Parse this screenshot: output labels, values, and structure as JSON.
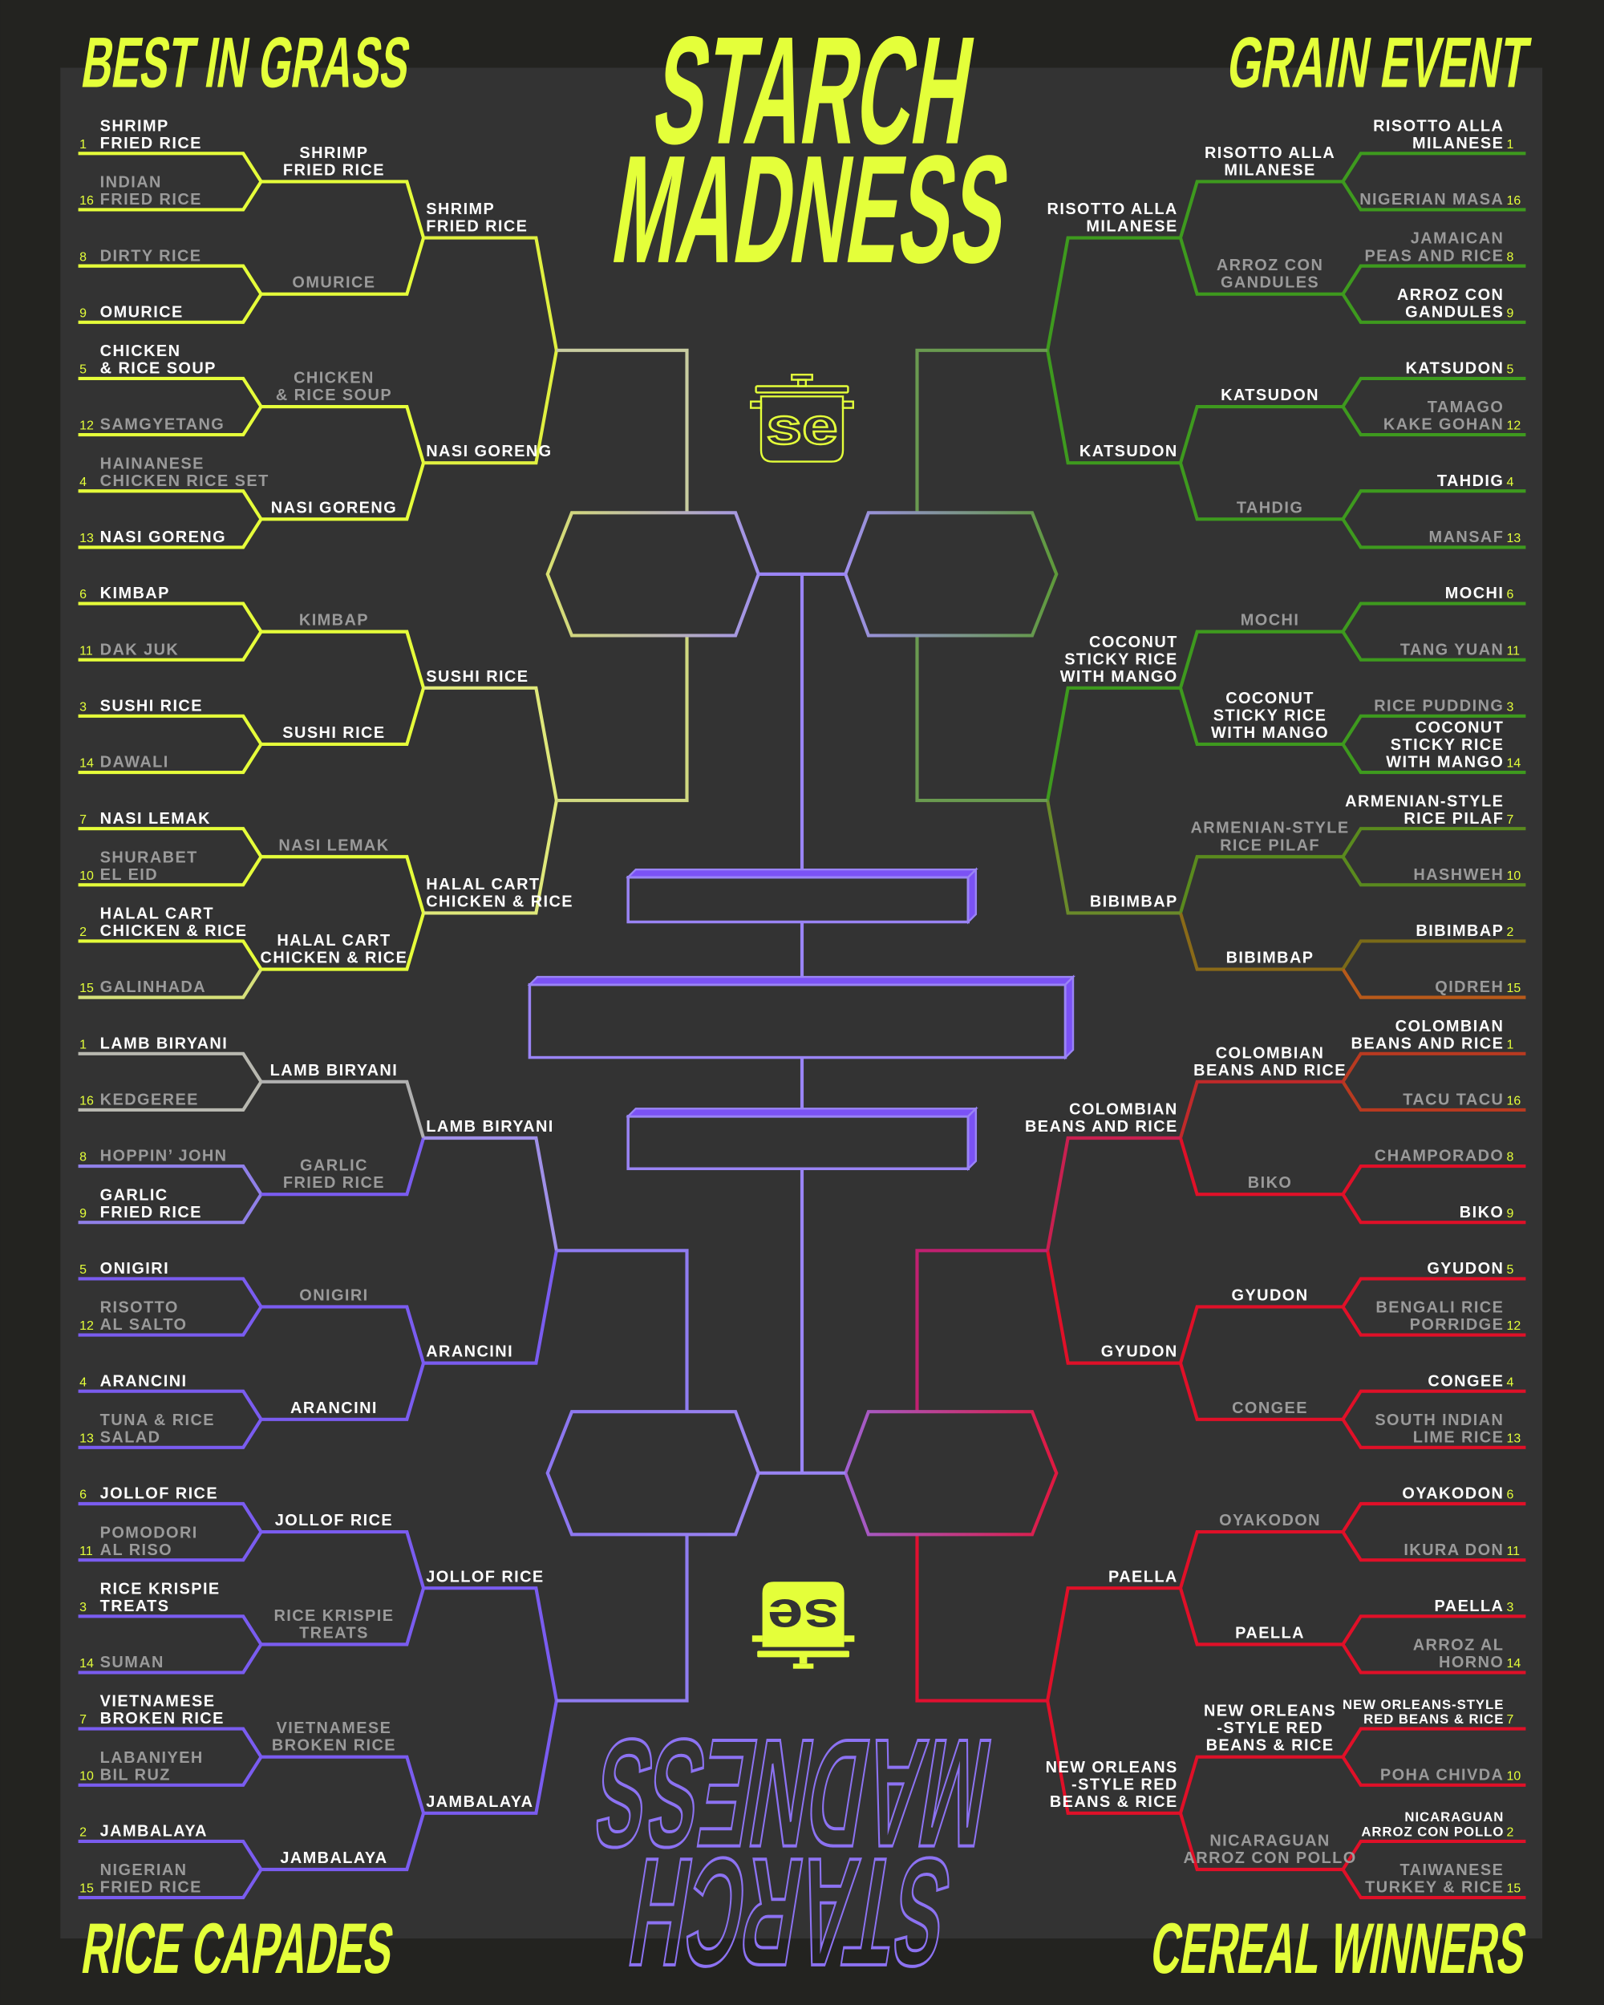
{
  "title": {
    "line1": "STARCH",
    "line2": "MADNESS"
  },
  "logo_text": "se",
  "colors": {
    "accent_yellow": "#e4ff3a",
    "panel": "#333333",
    "background": "#232320",
    "best_in_grass": "#e6ff3a",
    "rice_capades": "#7a5cf0",
    "grain_event": "#3e9a1e",
    "cereal_winners": "#e01028",
    "finals": "#9a84f5",
    "advanced_text": "#ffffff",
    "eliminated_text": "#9a9a9a"
  },
  "regions": [
    {
      "name": "BEST IN GRASS",
      "position": "top-left",
      "round1": [
        {
          "seed": 1,
          "name": [
            "SHRIMP",
            "FRIED RICE"
          ],
          "advanced": true
        },
        {
          "seed": 16,
          "name": [
            "INDIAN",
            "FRIED RICE"
          ],
          "advanced": false
        },
        {
          "seed": 8,
          "name": [
            "DIRTY RICE"
          ],
          "advanced": false
        },
        {
          "seed": 9,
          "name": [
            "OMURICE"
          ],
          "advanced": true
        },
        {
          "seed": 5,
          "name": [
            "CHICKEN",
            "& RICE SOUP"
          ],
          "advanced": true
        },
        {
          "seed": 12,
          "name": [
            "SAMGYETANG"
          ],
          "advanced": false
        },
        {
          "seed": 4,
          "name": [
            "HAINANESE",
            "CHICKEN RICE SET"
          ],
          "advanced": false
        },
        {
          "seed": 13,
          "name": [
            "NASI GORENG"
          ],
          "advanced": true
        },
        {
          "seed": 6,
          "name": [
            "KIMBAP"
          ],
          "advanced": true
        },
        {
          "seed": 11,
          "name": [
            "DAK JUK"
          ],
          "advanced": false
        },
        {
          "seed": 3,
          "name": [
            "SUSHI RICE"
          ],
          "advanced": true
        },
        {
          "seed": 14,
          "name": [
            "DAWALI"
          ],
          "advanced": false
        },
        {
          "seed": 7,
          "name": [
            "NASI LEMAK"
          ],
          "advanced": true
        },
        {
          "seed": 10,
          "name": [
            "SHURABET",
            "EL EID"
          ],
          "advanced": false
        },
        {
          "seed": 2,
          "name": [
            "HALAL CART",
            "CHICKEN & RICE"
          ],
          "advanced": true
        },
        {
          "seed": 15,
          "name": [
            "GALINHADA"
          ],
          "advanced": false
        }
      ],
      "round2": [
        {
          "name": [
            "SHRIMP",
            "FRIED RICE"
          ],
          "advanced": true
        },
        {
          "name": [
            "OMURICE"
          ],
          "advanced": false
        },
        {
          "name": [
            "CHICKEN",
            "& RICE SOUP"
          ],
          "advanced": false
        },
        {
          "name": [
            "NASI GORENG"
          ],
          "advanced": true
        },
        {
          "name": [
            "KIMBAP"
          ],
          "advanced": false
        },
        {
          "name": [
            "SUSHI RICE"
          ],
          "advanced": true
        },
        {
          "name": [
            "NASI LEMAK"
          ],
          "advanced": false
        },
        {
          "name": [
            "HALAL CART",
            "CHICKEN & RICE"
          ],
          "advanced": true
        }
      ],
      "round3": [
        {
          "name": [
            "SHRIMP",
            "FRIED RICE"
          ],
          "advanced": true
        },
        {
          "name": [
            "NASI GORENG"
          ],
          "advanced": true
        },
        {
          "name": [
            "SUSHI RICE"
          ],
          "advanced": true
        },
        {
          "name": [
            "HALAL CART",
            "CHICKEN & RICE"
          ],
          "advanced": true
        }
      ]
    },
    {
      "name": "RICE CAPADES",
      "position": "bottom-left",
      "round1": [
        {
          "seed": 1,
          "name": [
            "LAMB BIRYANI"
          ],
          "advanced": true
        },
        {
          "seed": 16,
          "name": [
            "KEDGEREE"
          ],
          "advanced": false
        },
        {
          "seed": 8,
          "name": [
            "HOPPIN’ JOHN"
          ],
          "advanced": false
        },
        {
          "seed": 9,
          "name": [
            "GARLIC",
            "FRIED RICE"
          ],
          "advanced": true
        },
        {
          "seed": 5,
          "name": [
            "ONIGIRI"
          ],
          "advanced": true
        },
        {
          "seed": 12,
          "name": [
            "RISOTTO",
            "AL SALTO"
          ],
          "advanced": false
        },
        {
          "seed": 4,
          "name": [
            "ARANCINI"
          ],
          "advanced": true
        },
        {
          "seed": 13,
          "name": [
            "TUNA & RICE",
            "SALAD"
          ],
          "advanced": false
        },
        {
          "seed": 6,
          "name": [
            "JOLLOF RICE"
          ],
          "advanced": true
        },
        {
          "seed": 11,
          "name": [
            "POMODORI",
            "AL RISO"
          ],
          "advanced": false
        },
        {
          "seed": 3,
          "name": [
            "RICE KRISPIE",
            "TREATS"
          ],
          "advanced": true
        },
        {
          "seed": 14,
          "name": [
            "SUMAN"
          ],
          "advanced": false
        },
        {
          "seed": 7,
          "name": [
            "VIETNAMESE",
            "BROKEN RICE"
          ],
          "advanced": true
        },
        {
          "seed": 10,
          "name": [
            "LABANIYEH",
            "BIL RUZ"
          ],
          "advanced": false
        },
        {
          "seed": 2,
          "name": [
            "JAMBALAYA"
          ],
          "advanced": true
        },
        {
          "seed": 15,
          "name": [
            "NIGERIAN",
            "FRIED RICE"
          ],
          "advanced": false
        }
      ],
      "round2": [
        {
          "name": [
            "LAMB BIRYANI"
          ],
          "advanced": true
        },
        {
          "name": [
            "GARLIC",
            "FRIED RICE"
          ],
          "advanced": false
        },
        {
          "name": [
            "ONIGIRI"
          ],
          "advanced": false
        },
        {
          "name": [
            "ARANCINI"
          ],
          "advanced": true
        },
        {
          "name": [
            "JOLLOF RICE"
          ],
          "advanced": true
        },
        {
          "name": [
            "RICE KRISPIE",
            "TREATS"
          ],
          "advanced": false
        },
        {
          "name": [
            "VIETNAMESE",
            "BROKEN RICE"
          ],
          "advanced": false
        },
        {
          "name": [
            "JAMBALAYA"
          ],
          "advanced": true
        }
      ],
      "round3": [
        {
          "name": [
            "LAMB BIRYANI"
          ],
          "advanced": true
        },
        {
          "name": [
            "ARANCINI"
          ],
          "advanced": true
        },
        {
          "name": [
            "JOLLOF RICE"
          ],
          "advanced": true
        },
        {
          "name": [
            "JAMBALAYA"
          ],
          "advanced": true
        }
      ]
    },
    {
      "name": "GRAIN EVENT",
      "position": "top-right",
      "round1": [
        {
          "seed": 1,
          "name": [
            "RISOTTO ALLA",
            "MILANESE"
          ],
          "advanced": true
        },
        {
          "seed": 16,
          "name": [
            "NIGERIAN MASA"
          ],
          "advanced": false
        },
        {
          "seed": 8,
          "name": [
            "JAMAICAN",
            "PEAS AND RICE"
          ],
          "advanced": false
        },
        {
          "seed": 9,
          "name": [
            "ARROZ CON",
            "GANDULES"
          ],
          "advanced": true
        },
        {
          "seed": 5,
          "name": [
            "KATSUDON"
          ],
          "advanced": true
        },
        {
          "seed": 12,
          "name": [
            "TAMAGO",
            "KAKE GOHAN"
          ],
          "advanced": false
        },
        {
          "seed": 4,
          "name": [
            "TAHDIG"
          ],
          "advanced": true
        },
        {
          "seed": 13,
          "name": [
            "MANSAF"
          ],
          "advanced": false
        },
        {
          "seed": 6,
          "name": [
            "MOCHI"
          ],
          "advanced": true
        },
        {
          "seed": 11,
          "name": [
            "TANG YUAN"
          ],
          "advanced": false
        },
        {
          "seed": 3,
          "name": [
            "RICE PUDDING"
          ],
          "advanced": false
        },
        {
          "seed": 14,
          "name": [
            "COCONUT",
            "STICKY RICE",
            "WITH MANGO"
          ],
          "advanced": true
        },
        {
          "seed": 7,
          "name": [
            "ARMENIAN-STYLE",
            "RICE PILAF"
          ],
          "advanced": true
        },
        {
          "seed": 10,
          "name": [
            "HASHWEH"
          ],
          "advanced": false
        },
        {
          "seed": 2,
          "name": [
            "BIBIMBAP"
          ],
          "advanced": true
        },
        {
          "seed": 15,
          "name": [
            "QIDREH"
          ],
          "advanced": false
        }
      ],
      "round2": [
        {
          "name": [
            "RISOTTO ALLA",
            "MILANESE"
          ],
          "advanced": true
        },
        {
          "name": [
            "ARROZ CON",
            "GANDULES"
          ],
          "advanced": false
        },
        {
          "name": [
            "KATSUDON"
          ],
          "advanced": true
        },
        {
          "name": [
            "TAHDIG"
          ],
          "advanced": false
        },
        {
          "name": [
            "MOCHI"
          ],
          "advanced": false
        },
        {
          "name": [
            "COCONUT",
            "STICKY RICE",
            "WITH MANGO"
          ],
          "advanced": true
        },
        {
          "name": [
            "ARMENIAN-STYLE",
            "RICE PILAF"
          ],
          "advanced": false
        },
        {
          "name": [
            "BIBIMBAP"
          ],
          "advanced": true
        }
      ],
      "round3": [
        {
          "name": [
            "RISOTTO ALLA",
            "MILANESE"
          ],
          "advanced": true
        },
        {
          "name": [
            "KATSUDON"
          ],
          "advanced": true
        },
        {
          "name": [
            "COCONUT",
            "STICKY RICE",
            "WITH MANGO"
          ],
          "advanced": true
        },
        {
          "name": [
            "BIBIMBAP"
          ],
          "advanced": true
        }
      ]
    },
    {
      "name": "CEREAL WINNERS",
      "position": "bottom-right",
      "round1": [
        {
          "seed": 1,
          "name": [
            "COLOMBIAN",
            "BEANS AND RICE"
          ],
          "advanced": true
        },
        {
          "seed": 16,
          "name": [
            "TACU TACU"
          ],
          "advanced": false
        },
        {
          "seed": 8,
          "name": [
            "CHAMPORADO"
          ],
          "advanced": false
        },
        {
          "seed": 9,
          "name": [
            "BIKO"
          ],
          "advanced": true
        },
        {
          "seed": 5,
          "name": [
            "GYUDON"
          ],
          "advanced": true
        },
        {
          "seed": 12,
          "name": [
            "BENGALI RICE",
            "PORRIDGE"
          ],
          "advanced": false
        },
        {
          "seed": 4,
          "name": [
            "CONGEE"
          ],
          "advanced": true
        },
        {
          "seed": 13,
          "name": [
            "SOUTH INDIAN",
            "LIME RICE"
          ],
          "advanced": false
        },
        {
          "seed": 6,
          "name": [
            "OYAKODON"
          ],
          "advanced": true
        },
        {
          "seed": 11,
          "name": [
            "IKURA DON"
          ],
          "advanced": false
        },
        {
          "seed": 3,
          "name": [
            "PAELLA"
          ],
          "advanced": true
        },
        {
          "seed": 14,
          "name": [
            "ARROZ AL",
            "HORNO"
          ],
          "advanced": false
        },
        {
          "seed": 7,
          "name": [
            "NEW ORLEANS-STYLE",
            "RED BEANS & RICE"
          ],
          "advanced": true
        },
        {
          "seed": 10,
          "name": [
            "POHA CHIVDA"
          ],
          "advanced": false
        },
        {
          "seed": 2,
          "name": [
            "NICARAGUAN",
            "ARROZ CON POLLO"
          ],
          "advanced": true
        },
        {
          "seed": 15,
          "name": [
            "TAIWANESE",
            "TURKEY & RICE"
          ],
          "advanced": false
        }
      ],
      "round2": [
        {
          "name": [
            "COLOMBIAN",
            "BEANS AND RICE"
          ],
          "advanced": true
        },
        {
          "name": [
            "BIKO"
          ],
          "advanced": false
        },
        {
          "name": [
            "GYUDON"
          ],
          "advanced": true
        },
        {
          "name": [
            "CONGEE"
          ],
          "advanced": false
        },
        {
          "name": [
            "OYAKODON"
          ],
          "advanced": false
        },
        {
          "name": [
            "PAELLA"
          ],
          "advanced": true
        },
        {
          "name": [
            "NEW ORLEANS",
            "-STYLE RED",
            "BEANS & RICE"
          ],
          "advanced": true
        },
        {
          "name": [
            "NICARAGUAN",
            "ARROZ CON POLLO"
          ],
          "advanced": false
        }
      ],
      "round3": [
        {
          "name": [
            "COLOMBIAN",
            "BEANS AND RICE"
          ],
          "advanced": true
        },
        {
          "name": [
            "GYUDON"
          ],
          "advanced": true
        },
        {
          "name": [
            "PAELLA"
          ],
          "advanced": true
        },
        {
          "name": [
            "NEW ORLEANS",
            "-STYLE RED",
            "BEANS & RICE"
          ],
          "advanced": true
        }
      ]
    }
  ]
}
